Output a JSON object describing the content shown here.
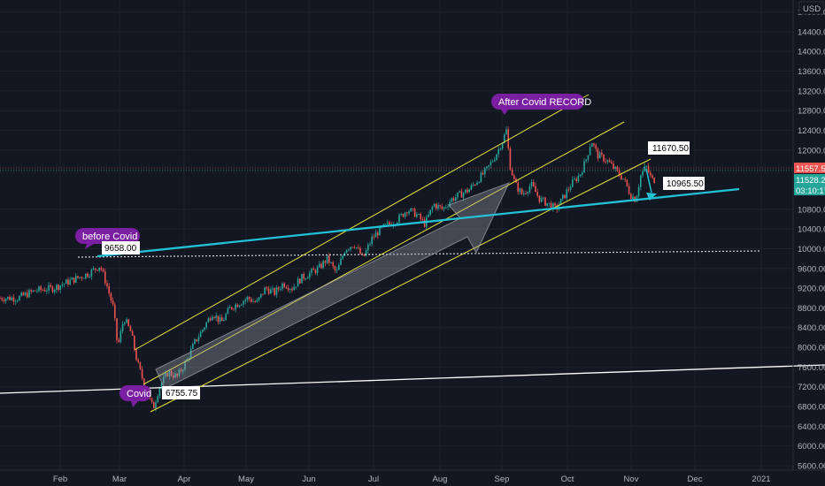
{
  "currency": "USD",
  "colors": {
    "background": "#131722",
    "grid": "#1e222d",
    "candle_up": "#26a69a",
    "candle_down": "#ef5350",
    "channel": "#e6e23c",
    "support": "#22c2d6",
    "purple": "#7b1fa2",
    "price_red": "#ef5350",
    "price_teal": "#26a69a"
  },
  "chart_data": {
    "type": "candlestick",
    "y_ticks": [
      "14800.00",
      "14400.00",
      "14000.00",
      "13600.00",
      "13200.00",
      "12800.00",
      "12400.00",
      "12000.00",
      "11600.00",
      "10800.00",
      "10400.00",
      "10000.00",
      "9600.00",
      "9200.00",
      "8800.00",
      "8400.00",
      "8000.00",
      "7600.00",
      "7200.00",
      "6800.00",
      "6400.00",
      "6000.00",
      "5600.00"
    ],
    "x_ticks": [
      "Feb",
      "Mar",
      "Apr",
      "May",
      "Jun",
      "Jul",
      "Aug",
      "Sep",
      "Oct",
      "Nov",
      "Dec",
      "2021"
    ],
    "ylim": [
      5600,
      14900
    ],
    "price_labels": {
      "last_red": "11557.50",
      "last_teal": "11528.25",
      "countdown": "03:10:17"
    },
    "annotations": [
      {
        "text": "before Covid",
        "style": "purple"
      },
      {
        "text": "9658.00",
        "style": "white"
      },
      {
        "text": "Covid",
        "style": "purple"
      },
      {
        "text": "6755.75",
        "style": "white"
      },
      {
        "text": "After Covid RECORD",
        "style": "purple"
      },
      {
        "text": "11670.50",
        "style": "white"
      },
      {
        "text": "10965.50",
        "style": "white"
      }
    ],
    "series": [
      {
        "values": [
          [
            20,
            9000
          ],
          [
            40,
            9150
          ],
          [
            60,
            9200
          ],
          [
            80,
            9350
          ],
          [
            100,
            9500
          ],
          [
            113,
            9658
          ],
          [
            120,
            9300
          ],
          [
            128,
            8800
          ],
          [
            133,
            8000
          ],
          [
            140,
            8600
          ],
          [
            148,
            8300
          ],
          [
            155,
            7700
          ],
          [
            162,
            7300
          ],
          [
            168,
            7000
          ],
          [
            173,
            6756
          ],
          [
            180,
            7200
          ],
          [
            190,
            7500
          ],
          [
            200,
            7400
          ],
          [
            210,
            7700
          ],
          [
            220,
            8100
          ],
          [
            230,
            8400
          ],
          [
            240,
            8700
          ],
          [
            250,
            8500
          ],
          [
            260,
            8800
          ],
          [
            270,
            8900
          ],
          [
            280,
            9000
          ],
          [
            290,
            8900
          ],
          [
            300,
            9200
          ],
          [
            310,
            9100
          ],
          [
            320,
            9300
          ],
          [
            330,
            9200
          ],
          [
            340,
            9400
          ],
          [
            350,
            9500
          ],
          [
            360,
            9600
          ],
          [
            370,
            9800
          ],
          [
            380,
            9500
          ],
          [
            390,
            10000
          ],
          [
            400,
            10100
          ],
          [
            410,
            9800
          ],
          [
            420,
            10200
          ],
          [
            430,
            10400
          ],
          [
            440,
            10500
          ],
          [
            450,
            10600
          ],
          [
            460,
            10800
          ],
          [
            470,
            10700
          ],
          [
            480,
            10500
          ],
          [
            490,
            10900
          ],
          [
            500,
            10800
          ],
          [
            510,
            11000
          ],
          [
            520,
            11100
          ],
          [
            530,
            11200
          ],
          [
            540,
            11400
          ],
          [
            550,
            11600
          ],
          [
            560,
            11900
          ],
          [
            568,
            12200
          ],
          [
            572,
            12400
          ],
          [
            576,
            11700
          ],
          [
            582,
            11300
          ],
          [
            590,
            11100
          ],
          [
            600,
            11300
          ],
          [
            610,
            11000
          ],
          [
            620,
            10900
          ],
          [
            628,
            10800
          ],
          [
            635,
            11000
          ],
          [
            645,
            11300
          ],
          [
            655,
            11500
          ],
          [
            662,
            11800
          ],
          [
            668,
            12200
          ],
          [
            675,
            11900
          ],
          [
            685,
            11800
          ],
          [
            695,
            11600
          ],
          [
            705,
            11400
          ],
          [
            712,
            11100
          ],
          [
            718,
            11000
          ],
          [
            724,
            11500
          ],
          [
            730,
            11670
          ],
          [
            736,
            11400
          ]
        ]
      }
    ]
  }
}
